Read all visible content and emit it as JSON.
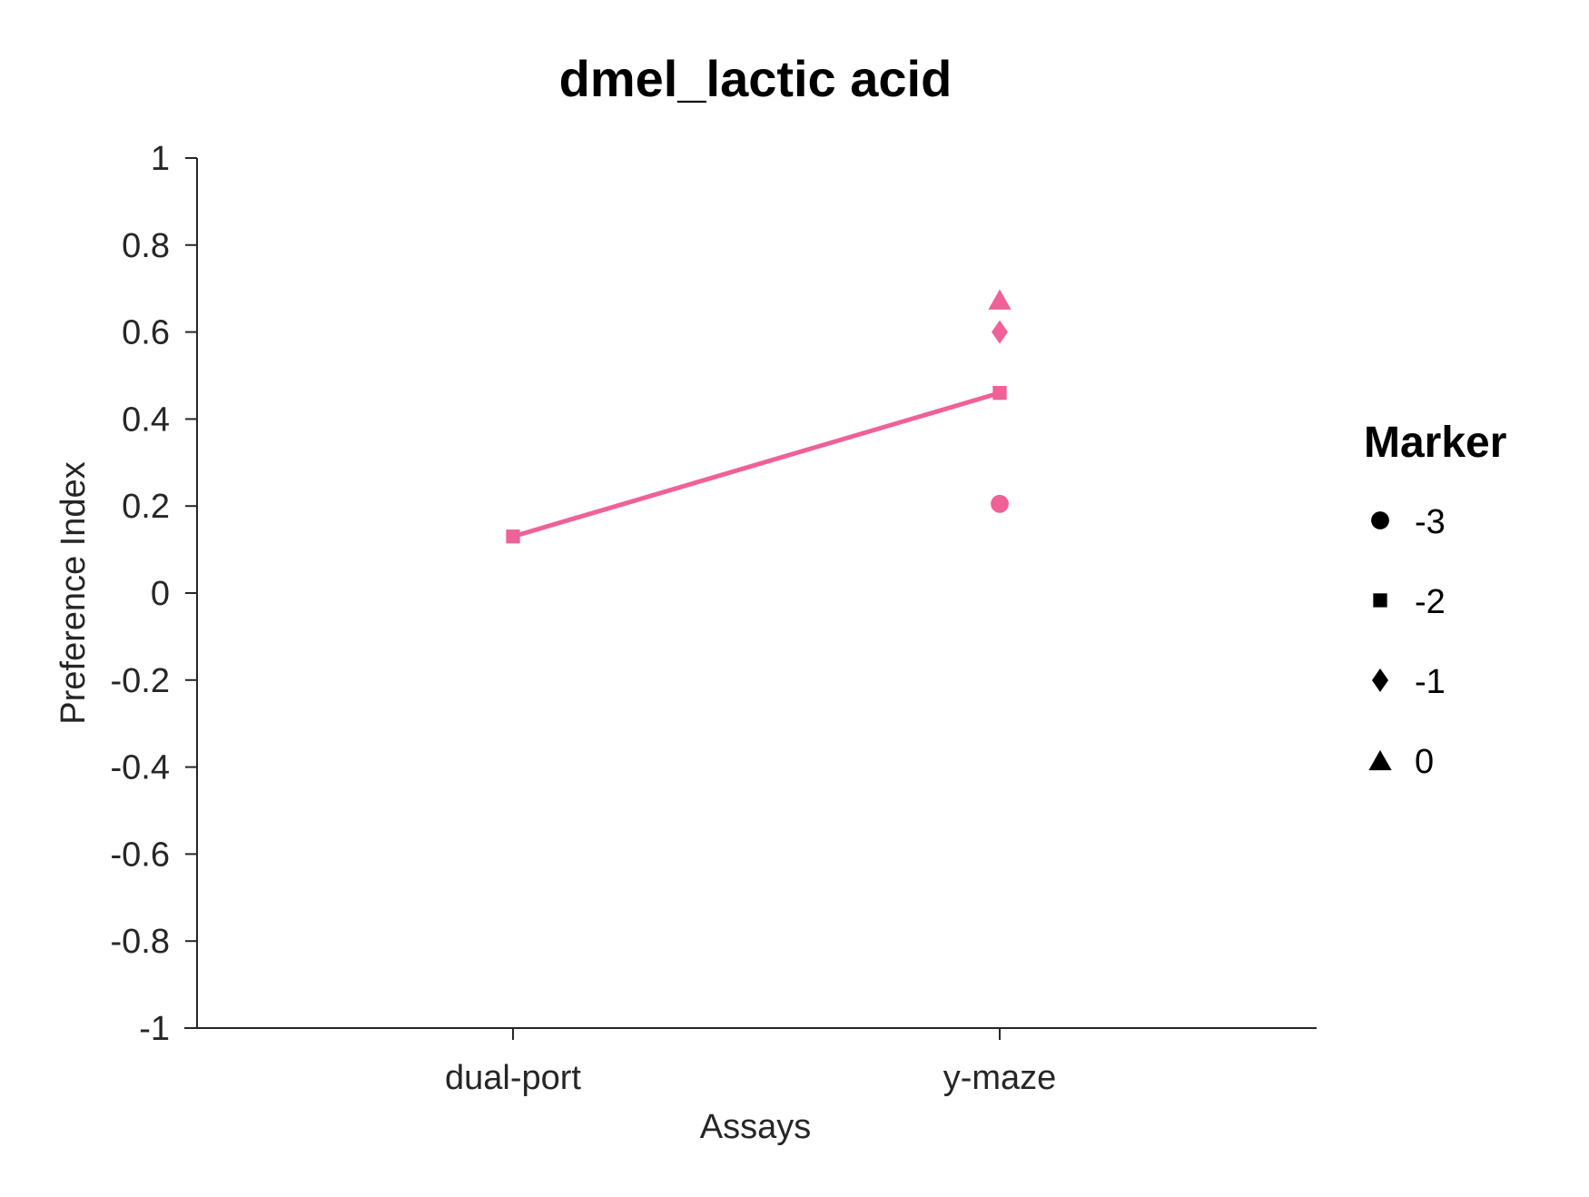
{
  "chart_data": {
    "type": "line",
    "title": "dmel_lactic acid",
    "xlabel": "Assays",
    "ylabel": "Preference Index",
    "categories": [
      "dual-port",
      "y-maze"
    ],
    "ylim": [
      -1,
      1
    ],
    "yticks": [
      1,
      0.8,
      0.6,
      0.4,
      0.2,
      0,
      -0.2,
      -0.4,
      -0.6,
      -0.8,
      -1
    ],
    "ytick_labels": [
      "1",
      "0.8",
      "0.6",
      "0.4",
      "0.2",
      "0",
      "-0.2",
      "-0.4",
      "-0.6",
      "-0.8",
      "-1"
    ],
    "grid": false,
    "color": "#EF6198",
    "series": [
      {
        "marker": "square",
        "values": [
          0.13,
          0.46
        ],
        "connected": true
      },
      {
        "marker": "circle",
        "values": [
          null,
          0.205
        ],
        "connected": false
      },
      {
        "marker": "diamond",
        "values": [
          null,
          0.6
        ],
        "connected": false
      },
      {
        "marker": "triangle",
        "values": [
          null,
          0.675
        ],
        "connected": false
      }
    ],
    "legend": {
      "title": "Marker",
      "placement": "right",
      "items": [
        {
          "label": "-3",
          "marker": "circle"
        },
        {
          "label": "-2",
          "marker": "square"
        },
        {
          "label": "-1",
          "marker": "diamond"
        },
        {
          "label": "0",
          "marker": "triangle"
        }
      ]
    }
  }
}
